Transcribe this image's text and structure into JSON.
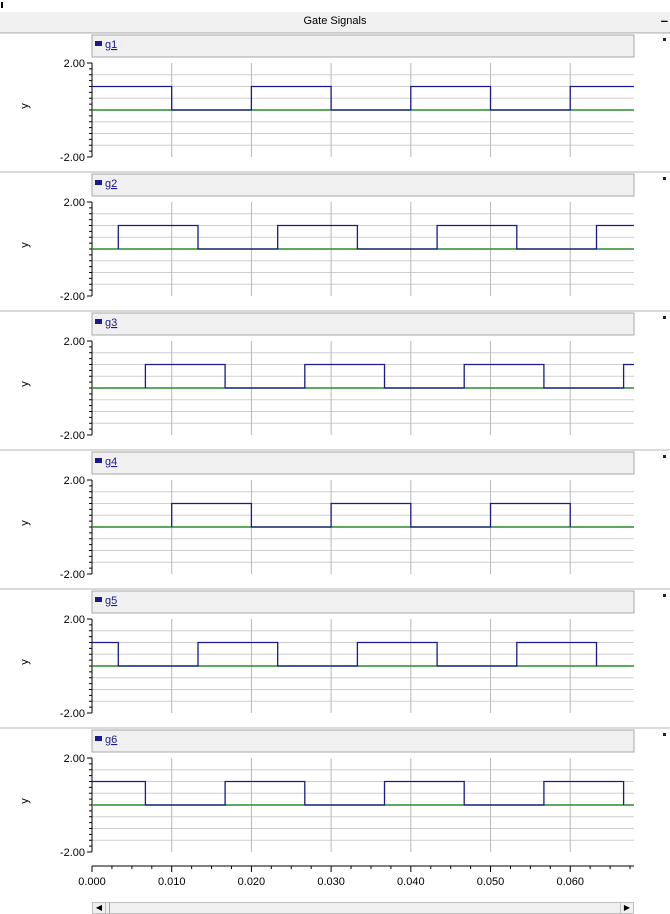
{
  "window": {
    "title": "Gate Signals",
    "minimize_label": "–"
  },
  "chart_data": {
    "type": "line",
    "x_ticks": [
      "0.000",
      "0.010",
      "0.020",
      "0.030",
      "0.040",
      "0.050",
      "0.060"
    ],
    "xlim": [
      0,
      0.068
    ],
    "panels": [
      {
        "name": "g1",
        "ylabel": "y",
        "ylim": [
          -2,
          2
        ],
        "y_tick_labels": [
          "2.00",
          "-2.00"
        ],
        "series": [
          {
            "name": "g1",
            "color": "#1a1a8c",
            "x": [
              0,
              0.01,
              0.01,
              0.02,
              0.02,
              0.03,
              0.03,
              0.04,
              0.04,
              0.05,
              0.05,
              0.06,
              0.06,
              0.068
            ],
            "y": [
              1,
              1,
              0,
              0,
              1,
              1,
              0,
              0,
              1,
              1,
              0,
              0,
              1,
              1
            ]
          },
          {
            "color": "#2a8c2a",
            "x": [
              0,
              0.068
            ],
            "y": [
              0,
              0
            ]
          }
        ]
      },
      {
        "name": "g2",
        "ylabel": "y",
        "ylim": [
          -2,
          2
        ],
        "y_tick_labels": [
          "2.00",
          "-2.00"
        ],
        "series": [
          {
            "name": "g2",
            "color": "#1a1a8c",
            "x": [
              0.0033,
              0.0033,
              0.0133,
              0.0133,
              0.0233,
              0.0233,
              0.0333,
              0.0333,
              0.0433,
              0.0433,
              0.0533,
              0.0533,
              0.0633,
              0.0633,
              0.068
            ],
            "y": [
              0,
              1,
              1,
              0,
              0,
              1,
              1,
              0,
              0,
              1,
              1,
              0,
              0,
              1,
              1
            ]
          },
          {
            "color": "#2a8c2a",
            "x": [
              0,
              0.068
            ],
            "y": [
              0,
              0
            ]
          }
        ]
      },
      {
        "name": "g3",
        "ylabel": "y",
        "ylim": [
          -2,
          2
        ],
        "y_tick_labels": [
          "2.00",
          "-2.00"
        ],
        "series": [
          {
            "name": "g3",
            "color": "#1a1a8c",
            "x": [
              0.0067,
              0.0067,
              0.0167,
              0.0167,
              0.0267,
              0.0267,
              0.0367,
              0.0367,
              0.0467,
              0.0467,
              0.0567,
              0.0567,
              0.0667,
              0.0667,
              0.068
            ],
            "y": [
              0,
              1,
              1,
              0,
              0,
              1,
              1,
              0,
              0,
              1,
              1,
              0,
              0,
              1,
              1
            ]
          },
          {
            "color": "#2a8c2a",
            "x": [
              0,
              0.068
            ],
            "y": [
              0,
              0
            ]
          }
        ]
      },
      {
        "name": "g4",
        "ylabel": "y",
        "ylim": [
          -2,
          2
        ],
        "y_tick_labels": [
          "2.00",
          "-2.00"
        ],
        "series": [
          {
            "name": "g4",
            "color": "#1a1a8c",
            "x": [
              0.01,
              0.01,
              0.02,
              0.02,
              0.03,
              0.03,
              0.04,
              0.04,
              0.05,
              0.05,
              0.06,
              0.06
            ],
            "y": [
              0,
              1,
              1,
              0,
              0,
              1,
              1,
              0,
              0,
              1,
              1,
              0
            ]
          },
          {
            "color": "#2a8c2a",
            "x": [
              0,
              0.068
            ],
            "y": [
              0,
              0
            ]
          }
        ]
      },
      {
        "name": "g5",
        "ylabel": "y",
        "ylim": [
          -2,
          2
        ],
        "y_tick_labels": [
          "2.00",
          "-2.00"
        ],
        "series": [
          {
            "name": "g5",
            "color": "#1a1a8c",
            "x": [
              0,
              0.0033,
              0.0033,
              0.0133,
              0.0133,
              0.0233,
              0.0233,
              0.0333,
              0.0333,
              0.0433,
              0.0433,
              0.0533,
              0.0533,
              0.0633,
              0.0633
            ],
            "y": [
              1,
              1,
              0,
              0,
              1,
              1,
              0,
              0,
              1,
              1,
              0,
              0,
              1,
              1,
              0
            ]
          },
          {
            "color": "#2a8c2a",
            "x": [
              0,
              0.068
            ],
            "y": [
              0,
              0
            ]
          }
        ]
      },
      {
        "name": "g6",
        "ylabel": "y",
        "ylim": [
          -2,
          2
        ],
        "y_tick_labels": [
          "2.00",
          "-2.00"
        ],
        "series": [
          {
            "name": "g6",
            "color": "#1a1a8c",
            "x": [
              0,
              0.0067,
              0.0067,
              0.0167,
              0.0167,
              0.0267,
              0.0267,
              0.0367,
              0.0367,
              0.0467,
              0.0467,
              0.0567,
              0.0567,
              0.0667,
              0.0667
            ],
            "y": [
              1,
              1,
              0,
              0,
              1,
              1,
              0,
              0,
              1,
              1,
              0,
              0,
              1,
              1,
              0
            ]
          },
          {
            "color": "#2a8c2a",
            "x": [
              0,
              0.068
            ],
            "y": [
              0,
              0
            ]
          }
        ]
      }
    ]
  }
}
